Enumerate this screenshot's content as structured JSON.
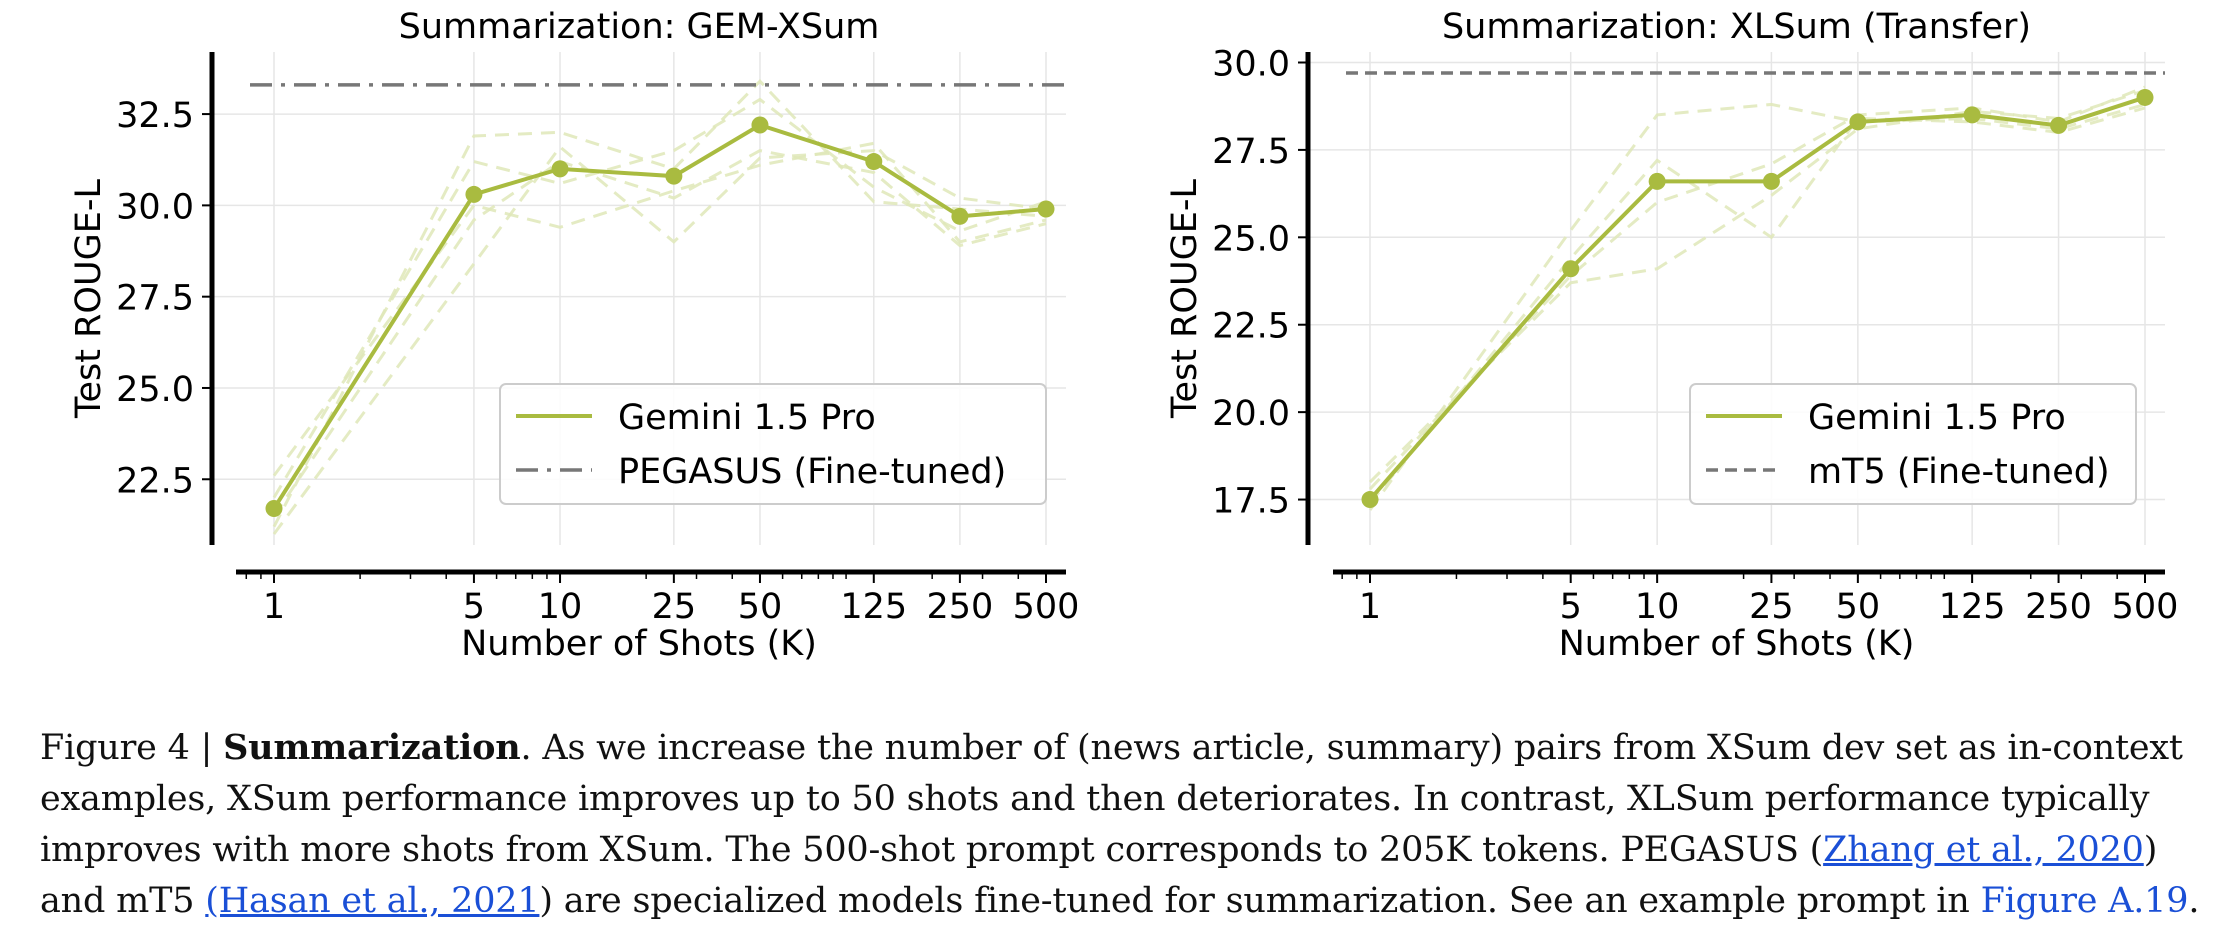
{
  "chart_data": [
    {
      "type": "line",
      "title": "Summarization: GEM-XSum",
      "xlabel": "Number of Shots (K)",
      "ylabel": "Test ROUGE-L",
      "xscale": "log",
      "x": [
        1,
        5,
        10,
        25,
        50,
        125,
        250,
        500
      ],
      "xticks": [
        "1",
        "5",
        "10",
        "25",
        "50",
        "125",
        "250",
        "500"
      ],
      "yticks": [
        "22.5",
        "25.0",
        "27.5",
        "30.0",
        "32.5"
      ],
      "ylim": [
        20.7,
        34.2
      ],
      "grid": true,
      "legend_position": "lower-right",
      "series": [
        {
          "name": "Gemini 1.5 Pro",
          "values": [
            21.7,
            30.3,
            31.0,
            30.8,
            32.2,
            31.2,
            29.7,
            29.9
          ],
          "color": "#a9bb40",
          "style": "solid-markers"
        }
      ],
      "runs": [
        [
          21.2,
          31.9,
          32.0,
          31.0,
          33.4,
          30.1,
          29.9,
          29.7
        ],
        [
          22.6,
          30.0,
          29.4,
          30.4,
          31.1,
          31.7,
          29.0,
          29.6
        ],
        [
          21.0,
          28.4,
          31.6,
          29.0,
          31.3,
          31.5,
          30.2,
          29.9
        ],
        [
          22.0,
          31.2,
          30.6,
          31.5,
          32.9,
          30.5,
          29.3,
          30.1
        ],
        [
          21.5,
          29.6,
          31.2,
          30.2,
          31.5,
          30.9,
          28.9,
          29.5
        ]
      ],
      "baseline": {
        "name": "PEGASUS (Fine-tuned)",
        "value": 33.3,
        "color": "#777777",
        "style": "dashdot"
      }
    },
    {
      "type": "line",
      "title": "Summarization: XLSum (Transfer)",
      "xlabel": "Number of Shots (K)",
      "ylabel": "Test ROUGE-L",
      "xscale": "log",
      "x": [
        1,
        5,
        10,
        25,
        50,
        125,
        250,
        500
      ],
      "xticks": [
        "1",
        "5",
        "10",
        "25",
        "50",
        "125",
        "250",
        "500"
      ],
      "yticks": [
        "17.5",
        "20.0",
        "22.5",
        "25.0",
        "27.5",
        "30.0"
      ],
      "ylim": [
        16.2,
        30.3
      ],
      "grid": true,
      "legend_position": "lower-right",
      "series": [
        {
          "name": "Gemini 1.5 Pro",
          "values": [
            17.5,
            24.1,
            26.6,
            26.6,
            28.3,
            28.5,
            28.2,
            29.0
          ],
          "color": "#a9bb40",
          "style": "solid-markers"
        }
      ],
      "runs": [
        [
          17.2,
          25.2,
          28.5,
          28.8,
          28.3,
          28.4,
          28.1,
          28.8
        ],
        [
          18.0,
          23.7,
          24.1,
          26.2,
          28.1,
          28.6,
          28.4,
          29.2
        ],
        [
          17.4,
          24.4,
          27.2,
          25.0,
          28.4,
          28.3,
          28.0,
          28.7
        ],
        [
          17.8,
          23.9,
          26.0,
          27.1,
          28.5,
          28.7,
          28.3,
          29.3
        ]
      ],
      "baseline": {
        "name": "mT5 (Fine-tuned)",
        "value": 29.7,
        "color": "#777777",
        "style": "dashed"
      }
    }
  ],
  "caption": {
    "label": "Figure 4 | ",
    "bold": "Summarization",
    "line1_rest": ". As we increase the number of (news article, summary) pairs from XSum dev set as in-context",
    "line2": "examples, XSum performance improves up to 50 shots and then deteriorates. In contrast, XLSum performance typically",
    "line3_pre": "improves with more shots from XSum. The 500-shot prompt corresponds to 205K tokens. PEGASUS (",
    "line3_link": "Zhang et al., 2020",
    "line3_post": ")",
    "line4_pre": "and mT5 ",
    "line4_link": "(Hasan et al., 2021",
    "line4_mid": ") are specialized models fine-tuned for summarization. See an example prompt in ",
    "line4_fig": "Figure A.19",
    "line4_end": "."
  }
}
